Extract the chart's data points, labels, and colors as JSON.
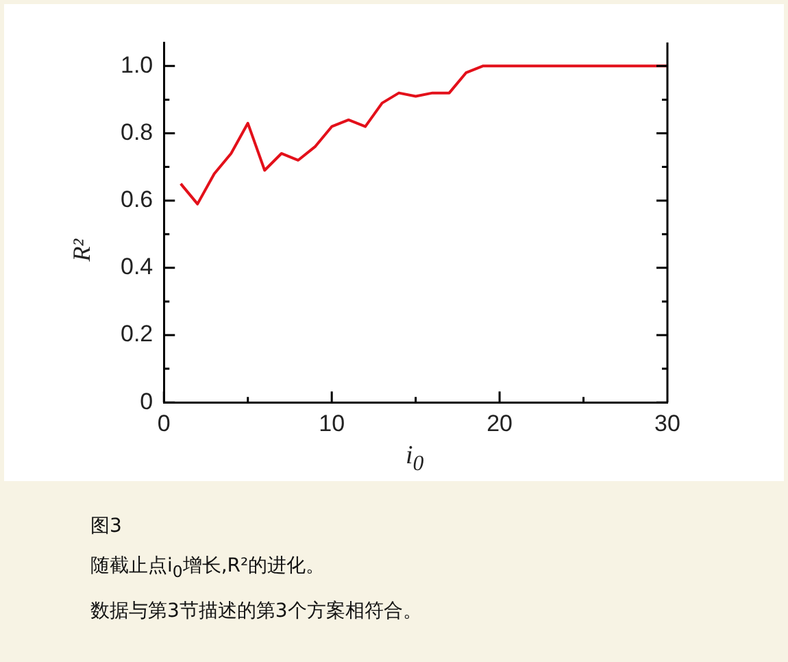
{
  "chart_data": {
    "type": "line",
    "x": [
      1,
      2,
      3,
      4,
      5,
      6,
      7,
      8,
      9,
      10,
      11,
      12,
      13,
      14,
      15,
      16,
      17,
      18,
      19,
      20,
      21,
      22,
      23,
      24,
      25,
      26,
      27,
      28,
      29,
      30
    ],
    "series": [
      {
        "color": "#e3101a",
        "values": [
          0.65,
          0.59,
          0.68,
          0.74,
          0.83,
          0.69,
          0.74,
          0.72,
          0.76,
          0.82,
          0.84,
          0.82,
          0.89,
          0.92,
          0.91,
          0.92,
          0.92,
          0.98,
          1.0,
          1.0,
          1.0,
          1.0,
          1.0,
          1.0,
          1.0,
          1.0,
          1.0,
          1.0,
          1.0,
          1.0
        ]
      }
    ],
    "xlim": [
      0,
      30
    ],
    "xticks": [
      0,
      {
        "value": 5,
        "label": null
      },
      10,
      {
        "value": 15,
        "label": null
      },
      20,
      {
        "value": 25,
        "label": null
      },
      30
    ],
    "ylim": [
      0,
      1.07
    ],
    "yticks": [
      0,
      {
        "value": 0.1,
        "label": null
      },
      0.2,
      {
        "value": 0.3,
        "label": null
      },
      0.4,
      {
        "value": 0.5,
        "label": null
      },
      0.6,
      {
        "value": 0.7,
        "label": null
      },
      0.8,
      {
        "value": 0.9,
        "label": null
      },
      {
        "value": 1,
        "label": "1.0"
      }
    ],
    "xlabel": "i$_{0}$",
    "ylabel": "R²",
    "annotations": [
      "图3",
      "随截止点i$_{0}$增长,R²的进化。",
      "数据与第3节描述的第3个方案相符合。"
    ]
  }
}
